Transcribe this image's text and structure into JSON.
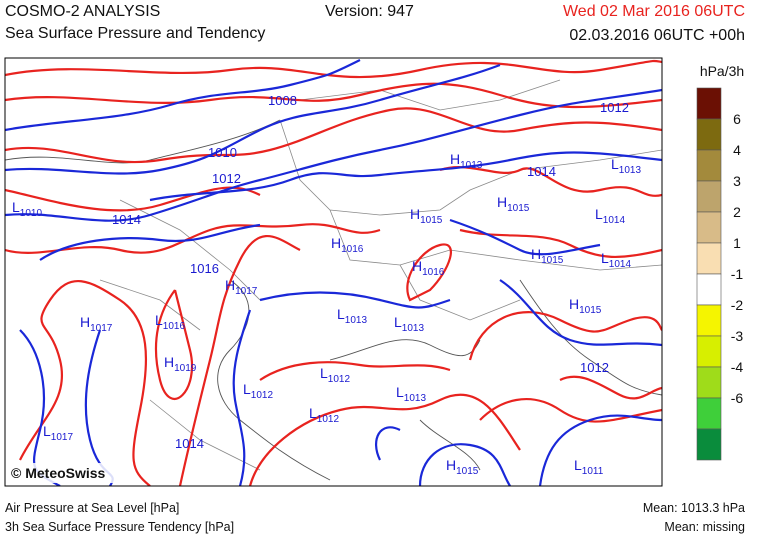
{
  "header": {
    "title": "COSMO-2 ANALYSIS",
    "subtitle": "Sea Surface Pressure and Tendency",
    "version": "Version: 947",
    "date": "Wed 02 Mar 2016 06UTC",
    "run": "02.03.2016 06UTC +00h"
  },
  "legend": {
    "unit": "hPa/3h",
    "labels": [
      "6",
      "4",
      "3",
      "2",
      "1",
      "-1",
      "-2",
      "-3",
      "-4",
      "-6"
    ],
    "colors": [
      "#6b1004",
      "#7d6a10",
      "#a38a3c",
      "#bda46c",
      "#d8bb88",
      "#f9deb2",
      "#ffffff",
      "#f5f500",
      "#d7ef00",
      "#9fdc1a",
      "#3fcf3a",
      "#0a8c3c"
    ]
  },
  "map": {
    "isobar_labels": [
      "1008",
      "1010",
      "1012",
      "1014",
      "1012",
      "1014",
      "1016",
      "1012",
      "1014"
    ],
    "pressure_centers": [
      {
        "type": "L",
        "value": "1010"
      },
      {
        "type": "H",
        "value": "1013"
      },
      {
        "type": "H",
        "value": "1015"
      },
      {
        "type": "H",
        "value": "1015"
      },
      {
        "type": "L",
        "value": "1013"
      },
      {
        "type": "L",
        "value": "1014"
      },
      {
        "type": "H",
        "value": "1016"
      },
      {
        "type": "H",
        "value": "1016"
      },
      {
        "type": "H",
        "value": "1015"
      },
      {
        "type": "L",
        "value": "1014"
      },
      {
        "type": "H",
        "value": "1017"
      },
      {
        "type": "H",
        "value": "1017"
      },
      {
        "type": "L",
        "value": "1016"
      },
      {
        "type": "L",
        "value": "1013"
      },
      {
        "type": "L",
        "value": "1013"
      },
      {
        "type": "H",
        "value": "1015"
      },
      {
        "type": "H",
        "value": "1019"
      },
      {
        "type": "L",
        "value": "1012"
      },
      {
        "type": "L",
        "value": "1012"
      },
      {
        "type": "L",
        "value": "1013"
      },
      {
        "type": "L",
        "value": "1012"
      },
      {
        "type": "L",
        "value": "1017"
      },
      {
        "type": "H",
        "value": "1015"
      },
      {
        "type": "L",
        "value": "1011"
      }
    ],
    "copyright": "© MeteoSwiss"
  },
  "footer": {
    "left_1": "Air Pressure at Sea Level [hPa]",
    "left_2": "3h Sea Surface Pressure Tendency [hPa]",
    "right_1": "Mean: 1013.3 hPa",
    "right_2": "Mean: missing"
  }
}
